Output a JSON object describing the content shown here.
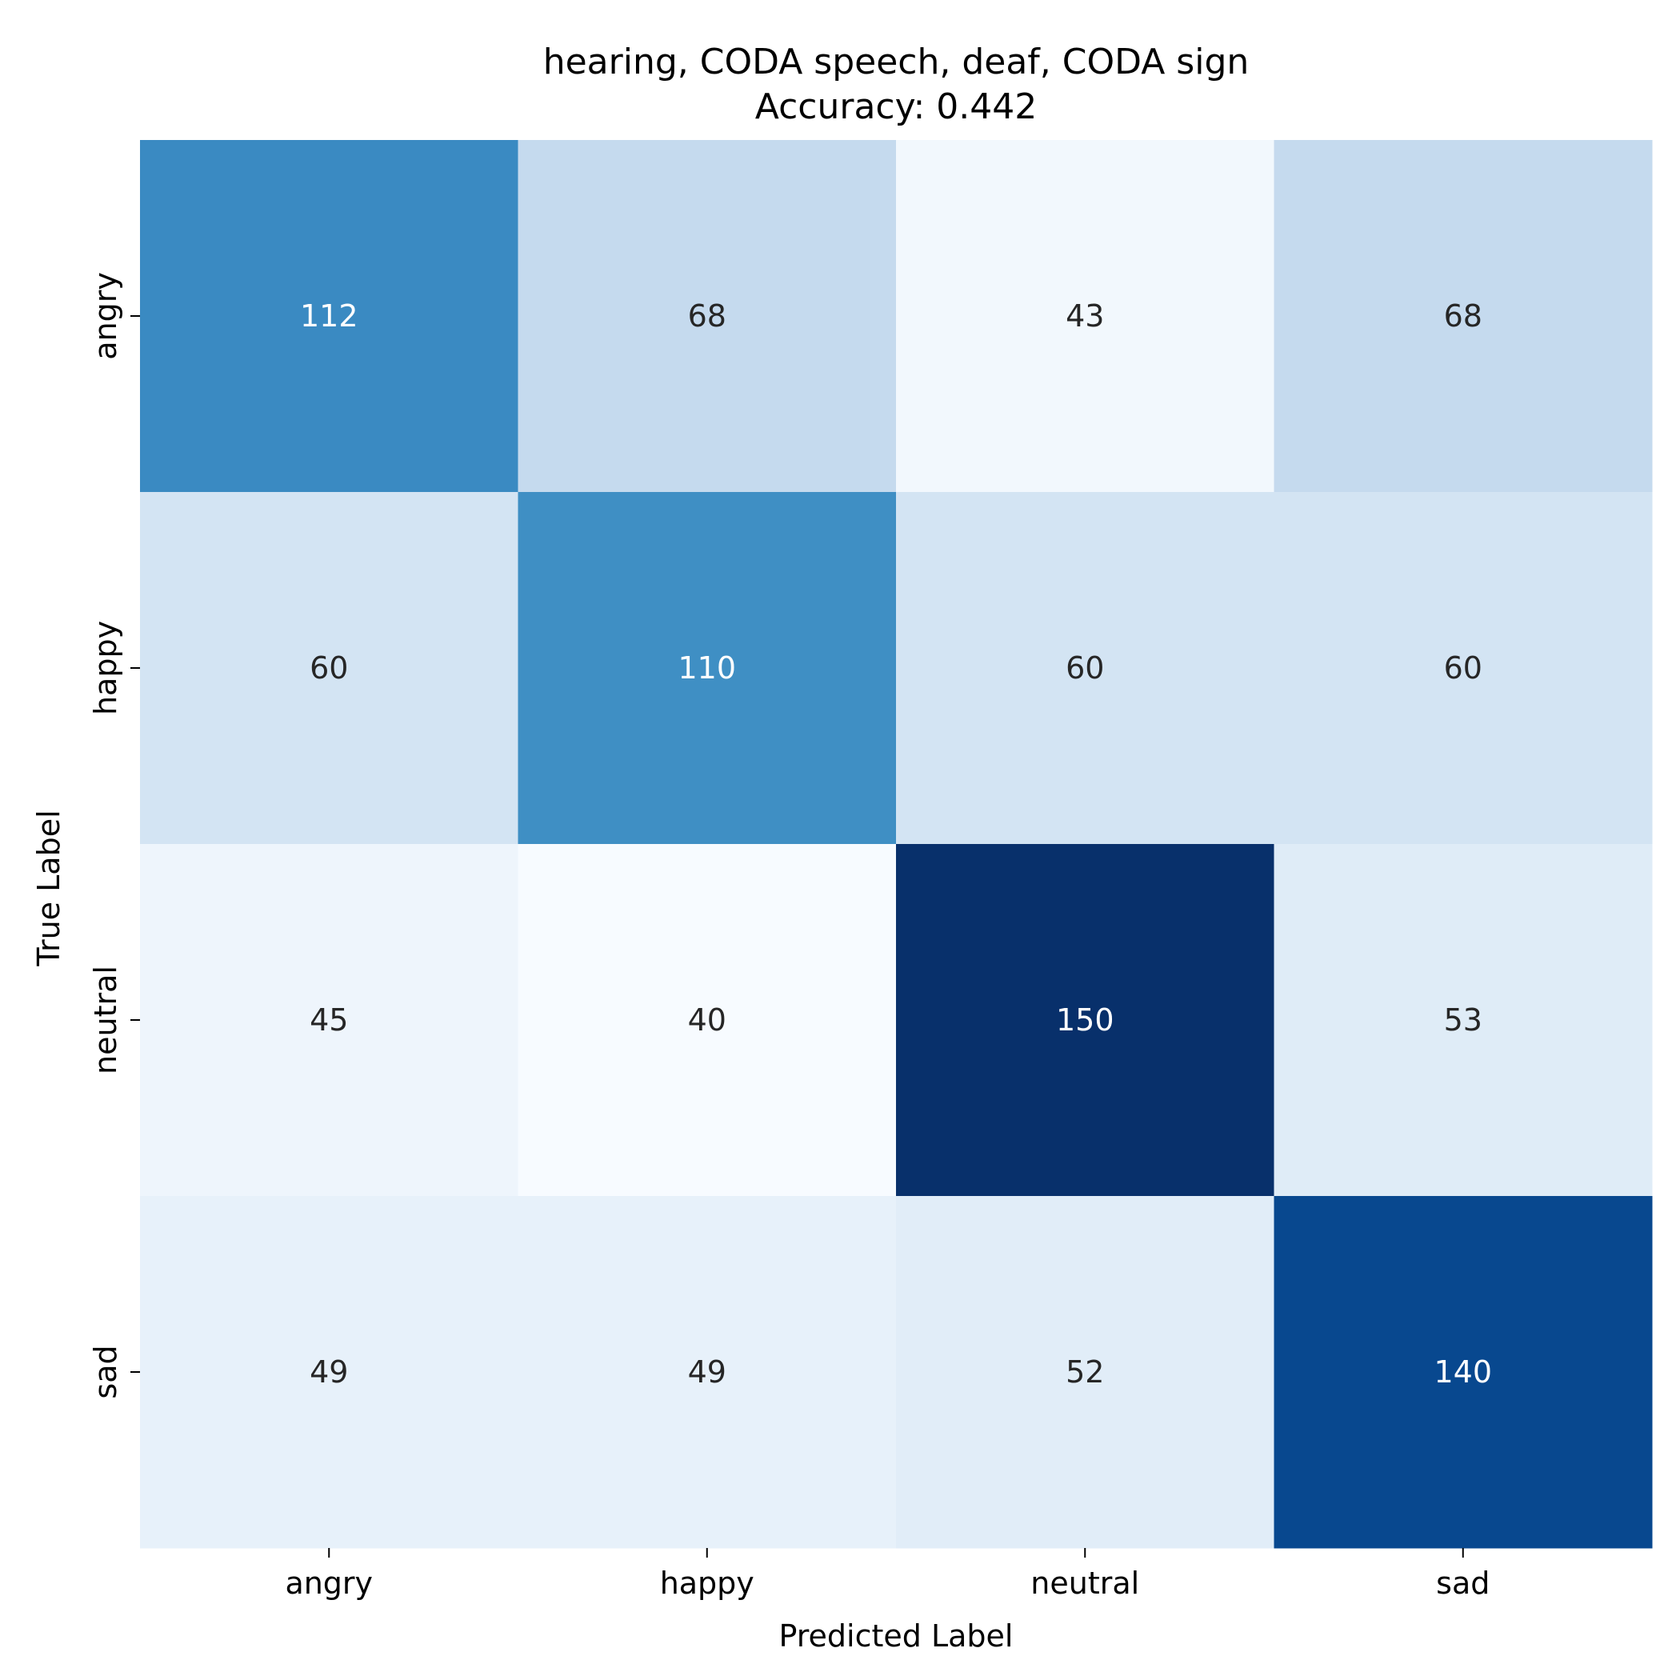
{
  "chart_data": {
    "type": "heatmap",
    "title": "hearing, CODA speech, deaf, CODA sign",
    "subtitle": "Accuracy: 0.442",
    "xlabel": "Predicted Label",
    "ylabel": "True Label",
    "x_categories": [
      "angry",
      "happy",
      "neutral",
      "sad"
    ],
    "y_categories": [
      "angry",
      "happy",
      "neutral",
      "sad"
    ],
    "values": [
      [
        112,
        68,
        43,
        68
      ],
      [
        60,
        110,
        60,
        60
      ],
      [
        45,
        40,
        150,
        53
      ],
      [
        49,
        49,
        52,
        140
      ]
    ],
    "colormap": "Blues",
    "vmin": 40,
    "vmax": 150,
    "colorbar": false,
    "grid": false
  }
}
